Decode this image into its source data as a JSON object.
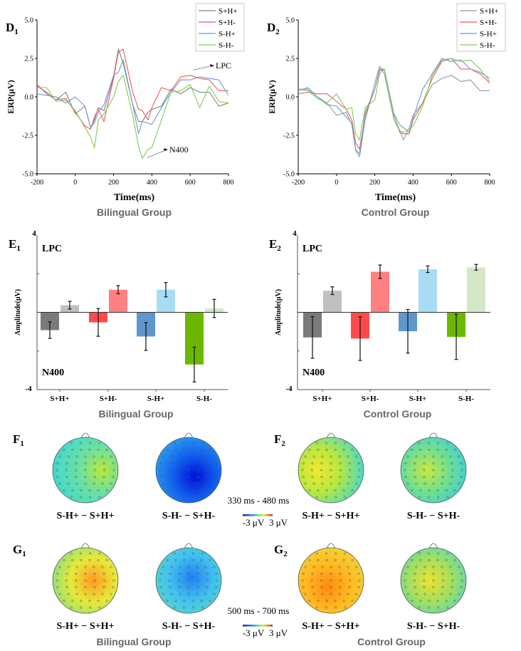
{
  "chart_data": [
    {
      "panel": "D1",
      "type": "line",
      "panel_label": "D",
      "panel_sub": "1",
      "xlabel": "Time(ms)",
      "ylabel": "ERP(μV)",
      "group": "Bilingual Group",
      "xlim": [
        -200,
        800
      ],
      "ylim": [
        -5,
        5
      ],
      "xticks": [
        "-200",
        "0",
        "200",
        "400",
        "600",
        "800"
      ],
      "yticks": [
        "5.0",
        "2.5",
        "0.0",
        "-2.5",
        "-5.0"
      ],
      "legend_position": "top-right",
      "annotations": [
        {
          "text": "LPC",
          "x": 600,
          "y": 1.7
        },
        {
          "text": "N400",
          "x": 360,
          "y": -4.0
        }
      ],
      "x": [
        -200,
        -150,
        -100,
        -50,
        0,
        50,
        80,
        100,
        120,
        150,
        200,
        225,
        250,
        300,
        330,
        350,
        380,
        400,
        450,
        500,
        550,
        600,
        650,
        700,
        750,
        800
      ],
      "series": [
        {
          "name": "S+H+",
          "color": "#808080",
          "values": [
            0.7,
            0.3,
            -0.2,
            0.3,
            -1.1,
            -0.6,
            -2.0,
            -1.5,
            -0.7,
            -0.9,
            1.3,
            3.1,
            2.2,
            -0.5,
            -1.6,
            -1.6,
            -1.0,
            -0.8,
            -0.6,
            0.5,
            0.2,
            0.6,
            0.3,
            0.3,
            -0.6,
            -0.4
          ]
        },
        {
          "name": "S+H-",
          "color": "#f0585c",
          "values": [
            0.8,
            0.2,
            -0.2,
            -0.1,
            -1.0,
            -1.9,
            -2.1,
            -1.3,
            -0.8,
            -1.6,
            1.2,
            2.9,
            3.1,
            0.3,
            -0.8,
            -0.9,
            -1.5,
            -0.7,
            0.6,
            0.4,
            1.3,
            1.4,
            1.2,
            1.1,
            0.4,
            0.4
          ]
        },
        {
          "name": "S-H+",
          "color": "#6a9ad6",
          "values": [
            0.2,
            0.1,
            0.0,
            -0.4,
            0.0,
            -0.6,
            -2.0,
            -1.7,
            -1.0,
            -0.5,
            1.4,
            1.6,
            2.4,
            -0.5,
            -2.4,
            -1.6,
            -1.7,
            -1.8,
            -0.7,
            0.3,
            1.1,
            1.1,
            1.3,
            1.2,
            1.1,
            0.1
          ]
        },
        {
          "name": "S-H-",
          "color": "#80cc50",
          "values": [
            0.6,
            0.6,
            -0.3,
            -0.2,
            -0.9,
            -2.0,
            -2.6,
            -3.3,
            -1.5,
            -1.1,
            0.0,
            1.0,
            1.4,
            -1.2,
            -3.2,
            -4.0,
            -3.4,
            -3.3,
            -1.5,
            0.3,
            0.4,
            0.8,
            -0.7,
            0.7,
            -0.3,
            -0.4
          ]
        }
      ]
    },
    {
      "panel": "D2",
      "type": "line",
      "panel_label": "D",
      "panel_sub": "2",
      "xlabel": "Time(ms)",
      "ylabel": "ERP(μV)",
      "group": "Control Group",
      "xlim": [
        -200,
        800
      ],
      "ylim": [
        -5,
        5
      ],
      "xticks": [
        "-200",
        "0",
        "200",
        "400",
        "600",
        "800"
      ],
      "yticks": [
        "5.0",
        "2.5",
        "0.0",
        "-2.5",
        "-5.0"
      ],
      "legend_position": "top-right",
      "x": [
        -200,
        -150,
        -100,
        -50,
        0,
        50,
        80,
        100,
        120,
        150,
        200,
        225,
        250,
        300,
        330,
        350,
        380,
        400,
        450,
        500,
        550,
        600,
        650,
        700,
        750,
        800
      ],
      "series": [
        {
          "name": "S+H+",
          "color": "#999999",
          "values": [
            0.5,
            0.5,
            0.0,
            -0.4,
            -1.2,
            -1.0,
            -1.8,
            -3.5,
            -3.9,
            -1.5,
            0.9,
            2.0,
            1.5,
            -1.5,
            -2.2,
            -2.8,
            -2.0,
            -1.2,
            -0.4,
            0.8,
            1.2,
            1.4,
            1.0,
            1.1,
            0.4,
            0.4
          ]
        },
        {
          "name": "S+H-",
          "color": "#f0585c",
          "values": [
            0.2,
            0.3,
            0.2,
            0.2,
            -0.3,
            -0.8,
            -1.5,
            -3.0,
            -3.4,
            -1.2,
            0.5,
            1.7,
            1.8,
            -1.2,
            -2.3,
            -2.4,
            -2.4,
            -1.5,
            -0.4,
            1.2,
            2.3,
            2.5,
            1.8,
            1.8,
            1.5,
            0.9
          ]
        },
        {
          "name": "S-H+",
          "color": "#6a9ad6",
          "values": [
            0.4,
            0.6,
            0.0,
            -0.5,
            -0.6,
            -1.3,
            -1.7,
            -3.4,
            -3.7,
            -1.0,
            0.5,
            1.8,
            1.8,
            -1.1,
            -1.8,
            -2.0,
            -2.3,
            -1.4,
            0.5,
            1.5,
            2.5,
            2.3,
            2.4,
            1.8,
            1.6,
            1.2
          ]
        },
        {
          "name": "S-H-",
          "color": "#80cc50",
          "values": [
            0.5,
            0.4,
            -0.1,
            -0.4,
            0.2,
            -0.8,
            -0.7,
            -2.4,
            -2.8,
            -0.7,
            -0.2,
            1.5,
            1.8,
            -1.2,
            -2.2,
            -2.3,
            -2.1,
            -1.9,
            -0.6,
            1.4,
            2.4,
            2.5,
            2.3,
            2.4,
            1.8,
            1.0
          ]
        }
      ]
    },
    {
      "panel": "E1",
      "type": "bar",
      "panel_label": "E",
      "panel_sub": "1",
      "ylabel": "Amplitude(μV)",
      "group": "Bilingual Group",
      "ylim": [
        -4,
        4
      ],
      "ytick_top": "4",
      "ytick_bottom": "-4",
      "region_labels": {
        "top": "LPC",
        "bottom": "N400"
      },
      "categories": [
        "S+H+",
        "S+H-",
        "S-H+",
        "S-H-"
      ],
      "series": [
        {
          "name": "N400",
          "colors": [
            "#7a7a7a",
            "#ff4a4a",
            "#5f96cc",
            "#6cb800"
          ],
          "values": [
            -0.92,
            -0.52,
            -1.25,
            -2.7
          ],
          "errors": [
            0.43,
            0.72,
            0.72,
            0.9
          ]
        },
        {
          "name": "LPC",
          "colors": [
            "#c0c0c0",
            "#ff8080",
            "#a8dcf4",
            "#d4e8c8"
          ],
          "values": [
            0.37,
            1.17,
            1.17,
            0.2
          ],
          "errors": [
            0.2,
            0.21,
            0.37,
            0.47
          ]
        }
      ]
    },
    {
      "panel": "E2",
      "type": "bar",
      "panel_label": "E",
      "panel_sub": "2",
      "ylabel": "Amplitude(μV)",
      "group": "Control Group",
      "ylim": [
        -4,
        4
      ],
      "ytick_top": "4",
      "ytick_bottom": "-4",
      "region_labels": {
        "top": "LPC",
        "bottom": "N400"
      },
      "categories": [
        "S+H+",
        "S+H-",
        "S-H+",
        "S-H-"
      ],
      "series": [
        {
          "name": "N400",
          "colors": [
            "#7a7a7a",
            "#ff4a4a",
            "#5f96cc",
            "#6cb800"
          ],
          "values": [
            -1.3,
            -1.36,
            -0.98,
            -1.27
          ],
          "errors": [
            1.08,
            1.13,
            1.13,
            1.17
          ]
        },
        {
          "name": "LPC",
          "colors": [
            "#c0c0c0",
            "#ff8080",
            "#a8dcf4",
            "#d4e8c8"
          ],
          "values": [
            1.12,
            2.1,
            2.23,
            2.33
          ],
          "errors": [
            0.2,
            0.35,
            0.17,
            0.15
          ]
        }
      ]
    }
  ],
  "topomaps": {
    "rows": [
      {
        "label": "F",
        "sub_left": "1",
        "sub_right": "2",
        "window": "330 ms - 480 ms",
        "scale_min": "-3 μV",
        "scale_max": "3 μV",
        "maps": [
          {
            "caption": "S-H+ − S+H+",
            "colors": [
              "#b8e83a",
              "#6ee0a0",
              "#40d8d0"
            ]
          },
          {
            "caption": "S-H- − S+H-",
            "colors": [
              "#0010d8",
              "#1060f0",
              "#30b0f0"
            ]
          },
          {
            "caption": "S-H+ − S+H+",
            "colors": [
              "#f0e830",
              "#b8e840",
              "#40d8d0"
            ]
          },
          {
            "caption": "S-H- − S+H-",
            "colors": [
              "#c8e840",
              "#70e090",
              "#30c8f0"
            ]
          }
        ]
      },
      {
        "label": "G",
        "sub_left": "1",
        "sub_right": "2",
        "window": "500 ms - 700 ms",
        "scale_min": "-3 μV",
        "scale_max": "3 μV",
        "maps": [
          {
            "caption": "S-H+ − S+H+",
            "colors": [
              "#ff9a20",
              "#e8e838",
              "#70e090"
            ]
          },
          {
            "caption": "S-H- − S+H-",
            "colors": [
              "#2080f0",
              "#40c0f0",
              "#60e0c0"
            ]
          },
          {
            "caption": "S-H+ − S+H+",
            "colors": [
              "#ff8a10",
              "#ffb820",
              "#e8e040"
            ]
          },
          {
            "caption": "S-H- − S+H-",
            "colors": [
              "#f0e030",
              "#a0e060",
              "#40d0e0"
            ]
          }
        ]
      }
    ],
    "group_left": "Bilingual Group",
    "group_right": "Control Group"
  }
}
